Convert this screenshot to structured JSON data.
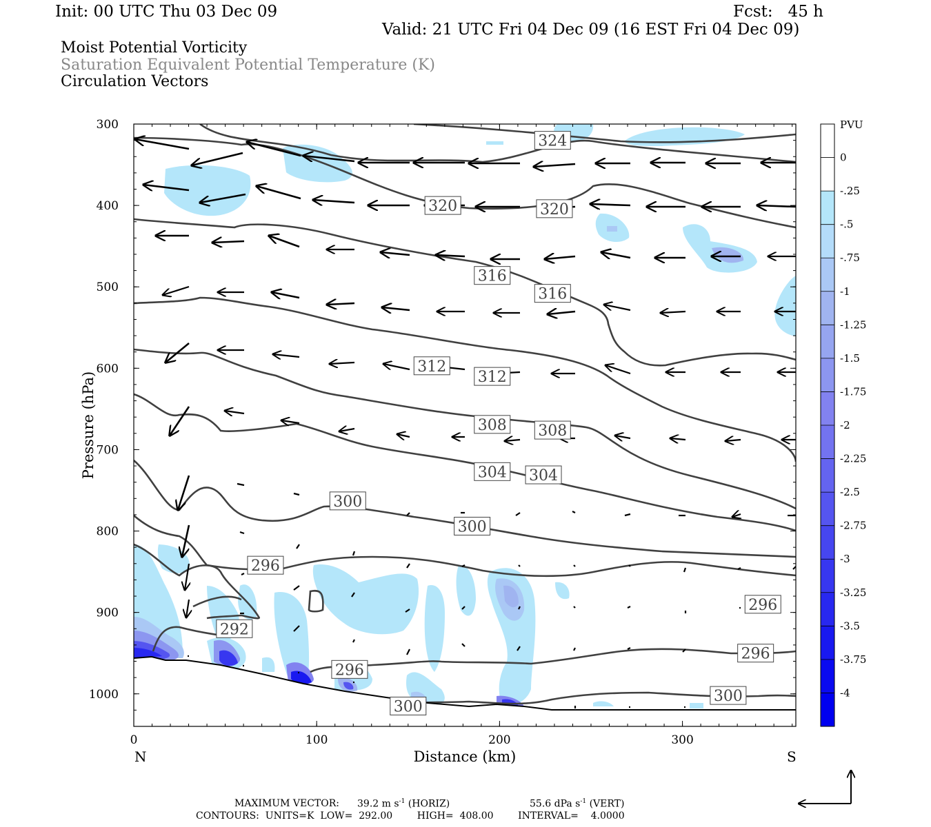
{
  "header": {
    "init": "Init: 00 UTC Thu 03 Dec 09",
    "fcst": "Fcst:   45 h",
    "valid": "Valid: 21 UTC Fri 04 Dec 09 (16 EST Fri 04 Dec 09)"
  },
  "fields": [
    {
      "label": "Moist Potential Vorticity",
      "color": "#000000"
    },
    {
      "label": "Saturation Equivalent Potential Temperature (K)",
      "color": "#888888"
    },
    {
      "label": "Circulation Vectors",
      "color": "#000000"
    }
  ],
  "footer": {
    "max_vector_label": "MAXIMUM VECTOR:",
    "horiz_value": "39.2 m s",
    "horiz_exp": "-1",
    "horiz_tag": "(HORIZ)",
    "vert_value": "55.6 dPa s",
    "vert_exp": "-1",
    "vert_tag": "(VERT)",
    "contours": "CONTOURS:  UNITS=K  LOW=  292.00        HIGH=  408.00        INTERVAL=    4.0000"
  },
  "chart_data": {
    "type": "cross-section",
    "xlabel": "Distance (km)",
    "ylabel": "Pressure (hPa)",
    "x_ticks": [
      0,
      100,
      200,
      300
    ],
    "y_ticks": [
      300,
      400,
      500,
      600,
      700,
      800,
      900,
      1000
    ],
    "xlim": [
      0,
      362
    ],
    "ylim": [
      1040,
      300
    ],
    "end_labels": {
      "left": "N",
      "right": "S"
    },
    "colorbar": {
      "unit": "PVU",
      "labels": [
        "0",
        "-.25",
        "-.5",
        "-.75",
        "-1",
        "-1.25",
        "-1.5",
        "-1.75",
        "-2",
        "-2.25",
        "-2.5",
        "-2.75",
        "-3",
        "-3.25",
        "-3.5",
        "-3.75",
        "-4"
      ],
      "colors": [
        "#ffffff",
        "#ffffff",
        "#b4e6fa",
        "#b4dcfa",
        "#aac8f5",
        "#a0b4f0",
        "#96a5f0",
        "#8c96f0",
        "#8282f0",
        "#7373f0",
        "#6464f0",
        "#5555f0",
        "#4646f0",
        "#3737f0",
        "#2828f0",
        "#1919f0",
        "#0a0af0",
        "#0000f0"
      ]
    },
    "contour_labels": [
      {
        "value": "324",
        "x": 229,
        "p": 320
      },
      {
        "value": "320",
        "x": 169,
        "p": 400
      },
      {
        "value": "320",
        "x": 230,
        "p": 404
      },
      {
        "value": "316",
        "x": 196,
        "p": 486
      },
      {
        "value": "316",
        "x": 229,
        "p": 508
      },
      {
        "value": "312",
        "x": 163,
        "p": 597
      },
      {
        "value": "312",
        "x": 196,
        "p": 610
      },
      {
        "value": "308",
        "x": 196,
        "p": 669
      },
      {
        "value": "308",
        "x": 229,
        "p": 676
      },
      {
        "value": "304",
        "x": 196,
        "p": 727
      },
      {
        "value": "304",
        "x": 224,
        "p": 731
      },
      {
        "value": "300",
        "x": 117,
        "p": 763
      },
      {
        "value": "300",
        "x": 185,
        "p": 794
      },
      {
        "value": "296",
        "x": 72,
        "p": 842
      },
      {
        "value": "296",
        "x": 344,
        "p": 890
      },
      {
        "value": "296",
        "x": 118,
        "p": 970
      },
      {
        "value": "296",
        "x": 340,
        "p": 950
      },
      {
        "value": "292",
        "x": 55,
        "p": 920
      },
      {
        "value": "300",
        "x": 325,
        "p": 1002
      },
      {
        "value": "300",
        "x": 150,
        "p": 1015
      }
    ]
  }
}
